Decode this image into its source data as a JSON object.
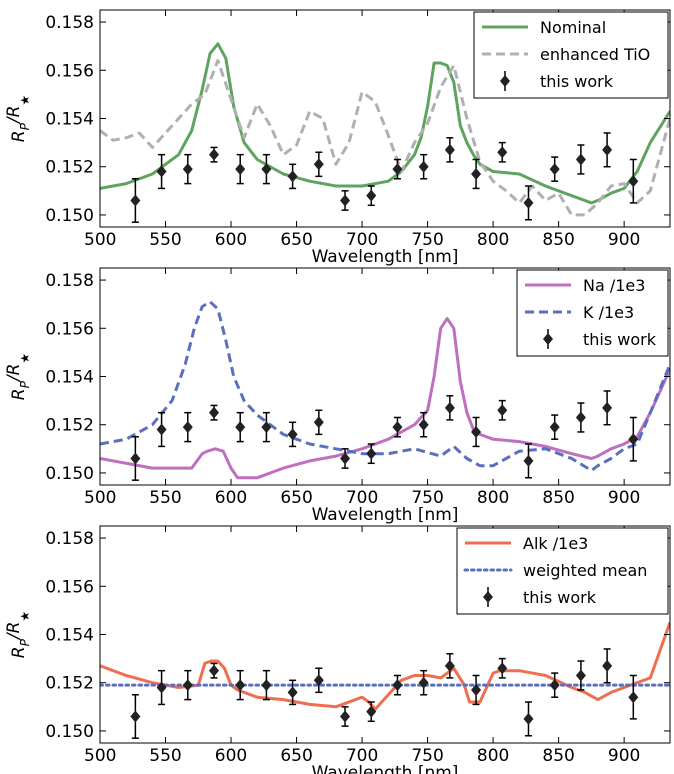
{
  "chart_data": [
    {
      "type": "line",
      "xlabel": "Wavelength [nm]",
      "ylabel_main": "R",
      "ylabel_sub1": "P",
      "ylabel_over": "/R",
      "ylabel_sub2": "★",
      "xlim": [
        500,
        935
      ],
      "ylim": [
        0.1495,
        0.1585
      ],
      "xticks": [
        "500",
        "550",
        "600",
        "650",
        "700",
        "750",
        "800",
        "850",
        "900"
      ],
      "yticks": [
        "0.150",
        "0.152",
        "0.154",
        "0.156",
        "0.158"
      ],
      "legend_position": "top-right",
      "series": [
        {
          "name": "Nominal",
          "style": "solid",
          "color": "#5fa35f",
          "x": [
            500,
            520,
            540,
            560,
            570,
            578,
            584,
            590,
            596,
            602,
            610,
            620,
            640,
            660,
            680,
            700,
            720,
            730,
            740,
            745,
            750,
            755,
            760,
            765,
            770,
            775,
            780,
            785,
            790,
            800,
            820,
            840,
            860,
            875,
            880,
            890,
            900,
            910,
            920,
            935
          ],
          "y": [
            0.1511,
            0.1513,
            0.1517,
            0.1525,
            0.1535,
            0.1552,
            0.1567,
            0.1571,
            0.1565,
            0.1545,
            0.153,
            0.1523,
            0.1517,
            0.1514,
            0.1512,
            0.1512,
            0.1514,
            0.1518,
            0.1525,
            0.1532,
            0.1545,
            0.1563,
            0.1563,
            0.1562,
            0.1555,
            0.1537,
            0.153,
            0.1525,
            0.1521,
            0.1518,
            0.1517,
            0.1512,
            0.1508,
            0.1505,
            0.1506,
            0.1509,
            0.1511,
            0.1518,
            0.153,
            0.1543
          ]
        },
        {
          "name": "enhanced TiO",
          "style": "dashed",
          "color": "#b0b0b0",
          "x": [
            500,
            510,
            520,
            530,
            540,
            550,
            560,
            570,
            580,
            590,
            600,
            610,
            620,
            630,
            640,
            650,
            660,
            670,
            680,
            690,
            700,
            710,
            720,
            730,
            740,
            750,
            760,
            770,
            780,
            790,
            800,
            810,
            820,
            830,
            840,
            850,
            860,
            870,
            880,
            890,
            900,
            910,
            920,
            935
          ],
          "y": [
            0.1535,
            0.1531,
            0.1532,
            0.1534,
            0.1528,
            0.1534,
            0.154,
            0.1546,
            0.155,
            0.1564,
            0.1548,
            0.1532,
            0.1546,
            0.1537,
            0.1525,
            0.1529,
            0.1543,
            0.154,
            0.1521,
            0.153,
            0.1551,
            0.1547,
            0.1533,
            0.1518,
            0.153,
            0.1538,
            0.1553,
            0.1562,
            0.154,
            0.1522,
            0.1514,
            0.151,
            0.1505,
            0.1512,
            0.1506,
            0.1509,
            0.15,
            0.15,
            0.1505,
            0.1512,
            0.1513,
            0.1505,
            0.151,
            0.154
          ]
        }
      ],
      "points": {
        "name": "this work",
        "x": [
          527,
          547,
          567,
          587,
          607,
          627,
          647,
          667,
          687,
          707,
          727,
          747,
          767,
          787,
          807,
          827,
          847,
          867,
          887,
          907
        ],
        "y": [
          0.1506,
          0.1518,
          0.1519,
          0.1525,
          0.1519,
          0.1519,
          0.1516,
          0.1521,
          0.1506,
          0.1508,
          0.1519,
          0.152,
          0.1527,
          0.1517,
          0.1526,
          0.1505,
          0.1519,
          0.1523,
          0.1527,
          0.1514
        ],
        "err": [
          0.0009,
          0.0007,
          0.0006,
          0.0003,
          0.0006,
          0.0006,
          0.0005,
          0.0005,
          0.0004,
          0.0004,
          0.0004,
          0.0005,
          0.0005,
          0.0006,
          0.0004,
          0.0007,
          0.0005,
          0.0006,
          0.0007,
          0.0009
        ]
      }
    },
    {
      "type": "line",
      "xlabel": "Wavelength [nm]",
      "ylabel_main": "R",
      "ylabel_sub1": "P",
      "ylabel_over": "/R",
      "ylabel_sub2": "★",
      "xlim": [
        500,
        935
      ],
      "ylim": [
        0.1495,
        0.1585
      ],
      "xticks": [
        "500",
        "550",
        "600",
        "650",
        "700",
        "750",
        "800",
        "850",
        "900"
      ],
      "yticks": [
        "0.150",
        "0.152",
        "0.154",
        "0.156",
        "0.158"
      ],
      "legend_position": "top-right",
      "series": [
        {
          "name": "Na /1e3",
          "style": "solid",
          "color": "#bf6fbf",
          "x": [
            500,
            540,
            570,
            578,
            582,
            588,
            594,
            600,
            605,
            620,
            640,
            660,
            680,
            700,
            720,
            740,
            750,
            755,
            760,
            765,
            770,
            775,
            780,
            785,
            790,
            800,
            820,
            840,
            860,
            875,
            880,
            890,
            900,
            910,
            920,
            935
          ],
          "y": [
            0.1506,
            0.1502,
            0.1502,
            0.1508,
            0.1509,
            0.151,
            0.1509,
            0.1502,
            0.1498,
            0.1498,
            0.1502,
            0.1505,
            0.1507,
            0.151,
            0.1514,
            0.152,
            0.1526,
            0.154,
            0.156,
            0.1564,
            0.156,
            0.1538,
            0.1525,
            0.1518,
            0.1516,
            0.1514,
            0.1513,
            0.1511,
            0.1508,
            0.1506,
            0.1507,
            0.151,
            0.1512,
            0.1515,
            0.1525,
            0.1543
          ]
        },
        {
          "name": "K /1e3",
          "style": "dashed",
          "color": "#5b6fbf",
          "x": [
            500,
            520,
            540,
            555,
            565,
            572,
            578,
            584,
            590,
            596,
            602,
            610,
            620,
            640,
            660,
            680,
            700,
            720,
            740,
            760,
            770,
            780,
            790,
            800,
            820,
            840,
            860,
            875,
            880,
            890,
            900,
            910,
            920,
            935
          ],
          "y": [
            0.1512,
            0.1514,
            0.152,
            0.153,
            0.1545,
            0.156,
            0.1569,
            0.1571,
            0.1568,
            0.1555,
            0.154,
            0.153,
            0.1524,
            0.1516,
            0.1512,
            0.151,
            0.1508,
            0.1508,
            0.151,
            0.1507,
            0.1511,
            0.1506,
            0.1503,
            0.1503,
            0.1509,
            0.151,
            0.1506,
            0.1501,
            0.1503,
            0.1506,
            0.151,
            0.1512,
            0.1525,
            0.1545
          ]
        }
      ],
      "points": {
        "name": "this work",
        "x": [
          527,
          547,
          567,
          587,
          607,
          627,
          647,
          667,
          687,
          707,
          727,
          747,
          767,
          787,
          807,
          827,
          847,
          867,
          887,
          907
        ],
        "y": [
          0.1506,
          0.1518,
          0.1519,
          0.1525,
          0.1519,
          0.1519,
          0.1516,
          0.1521,
          0.1506,
          0.1508,
          0.1519,
          0.152,
          0.1527,
          0.1517,
          0.1526,
          0.1505,
          0.1519,
          0.1523,
          0.1527,
          0.1514
        ],
        "err": [
          0.0009,
          0.0007,
          0.0006,
          0.0003,
          0.0006,
          0.0006,
          0.0005,
          0.0005,
          0.0004,
          0.0004,
          0.0004,
          0.0005,
          0.0005,
          0.0006,
          0.0004,
          0.0007,
          0.0005,
          0.0006,
          0.0007,
          0.0009
        ]
      }
    },
    {
      "type": "line",
      "xlabel": "Wavelength [nm]",
      "ylabel_main": "R",
      "ylabel_sub1": "P",
      "ylabel_over": "/R",
      "ylabel_sub2": "★",
      "xlim": [
        500,
        935
      ],
      "ylim": [
        0.1495,
        0.1585
      ],
      "xticks": [
        "500",
        "550",
        "600",
        "650",
        "700",
        "750",
        "800",
        "850",
        "900"
      ],
      "yticks": [
        "0.150",
        "0.152",
        "0.154",
        "0.156",
        "0.158"
      ],
      "legend_position": "top-right",
      "series": [
        {
          "name": "Alk /1e3",
          "style": "solid",
          "color": "#ee6f4f",
          "x": [
            500,
            520,
            540,
            560,
            575,
            580,
            585,
            590,
            595,
            600,
            605,
            610,
            620,
            640,
            660,
            680,
            700,
            705,
            710,
            720,
            730,
            740,
            750,
            760,
            770,
            778,
            782,
            790,
            795,
            800,
            805,
            810,
            820,
            840,
            860,
            870,
            880,
            890,
            900,
            910,
            920,
            935
          ],
          "y": [
            0.1527,
            0.1523,
            0.152,
            0.1518,
            0.1519,
            0.1528,
            0.1529,
            0.1529,
            0.1526,
            0.1519,
            0.1517,
            0.1516,
            0.1514,
            0.1513,
            0.1511,
            0.151,
            0.1514,
            0.1512,
            0.1509,
            0.1515,
            0.1521,
            0.1523,
            0.1523,
            0.1522,
            0.1526,
            0.1519,
            0.1512,
            0.1512,
            0.1518,
            0.1524,
            0.1525,
            0.1525,
            0.1525,
            0.1523,
            0.1518,
            0.1516,
            0.1513,
            0.1516,
            0.1518,
            0.152,
            0.1522,
            0.1545
          ]
        },
        {
          "name": "weighted mean",
          "style": "dotted",
          "color": "#5b6fbf",
          "x": [
            500,
            935
          ],
          "y": [
            0.1519,
            0.1519
          ]
        }
      ],
      "points": {
        "name": "this work",
        "x": [
          527,
          547,
          567,
          587,
          607,
          627,
          647,
          667,
          687,
          707,
          727,
          747,
          767,
          787,
          807,
          827,
          847,
          867,
          887,
          907
        ],
        "y": [
          0.1506,
          0.1518,
          0.1519,
          0.1525,
          0.1519,
          0.1519,
          0.1516,
          0.1521,
          0.1506,
          0.1508,
          0.1519,
          0.152,
          0.1527,
          0.1517,
          0.1526,
          0.1505,
          0.1519,
          0.1523,
          0.1527,
          0.1514
        ],
        "err": [
          0.0009,
          0.0007,
          0.0006,
          0.0003,
          0.0006,
          0.0006,
          0.0005,
          0.0005,
          0.0004,
          0.0004,
          0.0004,
          0.0005,
          0.0005,
          0.0006,
          0.0004,
          0.0007,
          0.0005,
          0.0006,
          0.0007,
          0.0009
        ]
      }
    }
  ]
}
